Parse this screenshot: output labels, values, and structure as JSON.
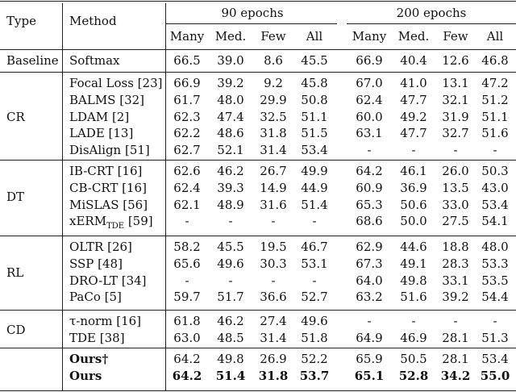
{
  "header": {
    "type": "Type",
    "method": "Method",
    "group1": "90 epochs",
    "group2": "200 epochs",
    "cols": [
      "Many",
      "Med.",
      "Few",
      "All",
      "Many",
      "Med.",
      "Few",
      "All"
    ]
  },
  "groups": [
    {
      "label": "Baseline",
      "rows": [
        {
          "method": "Softmax",
          "values": [
            "66.5",
            "39.0",
            "8.6",
            "45.5",
            "66.9",
            "40.4",
            "12.6",
            "46.8"
          ]
        }
      ]
    },
    {
      "label": "CR",
      "rows": [
        {
          "method": "Focal Loss [23]",
          "values": [
            "66.9",
            "39.2",
            "9.2",
            "45.8",
            "67.0",
            "41.0",
            "13.1",
            "47.2"
          ]
        },
        {
          "method": "BALMS [32]",
          "values": [
            "61.7",
            "48.0",
            "29.9",
            "50.8",
            "62.4",
            "47.7",
            "32.1",
            "51.2"
          ]
        },
        {
          "method": "LDAM [2]",
          "values": [
            "62.3",
            "47.4",
            "32.5",
            "51.1",
            "60.0",
            "49.2",
            "31.9",
            "51.1"
          ]
        },
        {
          "method": "LADE [13]",
          "values": [
            "62.2",
            "48.6",
            "31.8",
            "51.5",
            "63.1",
            "47.7",
            "32.7",
            "51.6"
          ]
        },
        {
          "method": "DisAlign [51]",
          "values": [
            "62.7",
            "52.1",
            "31.4",
            "53.4",
            "-",
            "-",
            "-",
            "-"
          ]
        }
      ]
    },
    {
      "label": "DT",
      "rows": [
        {
          "method": "IB-CRT [16]",
          "values": [
            "62.6",
            "46.2",
            "26.7",
            "49.9",
            "64.2",
            "46.1",
            "26.0",
            "50.3"
          ]
        },
        {
          "method": "CB-CRT [16]",
          "values": [
            "62.4",
            "39.3",
            "14.9",
            "44.9",
            "60.9",
            "36.9",
            "13.5",
            "43.0"
          ]
        },
        {
          "method": "MiSLAS [56]",
          "values": [
            "62.1",
            "48.9",
            "31.6",
            "51.4",
            "65.3",
            "50.6",
            "33.0",
            "53.4"
          ]
        },
        {
          "method": "xERM",
          "method_sub": "TDE",
          "method_ref": " [59]",
          "values": [
            "-",
            "-",
            "-",
            "-",
            "68.6",
            "50.0",
            "27.5",
            "54.1"
          ]
        }
      ]
    },
    {
      "label": "RL",
      "rows": [
        {
          "method": "OLTR [26]",
          "values": [
            "58.2",
            "45.5",
            "19.5",
            "46.7",
            "62.9",
            "44.6",
            "18.8",
            "48.0"
          ]
        },
        {
          "method": "SSP [48]",
          "values": [
            "65.6",
            "49.6",
            "30.3",
            "53.1",
            "67.3",
            "49.1",
            "28.3",
            "53.3"
          ]
        },
        {
          "method": "DRO-LT [34]",
          "values": [
            "-",
            "-",
            "-",
            "-",
            "64.0",
            "49.8",
            "33.1",
            "53.5"
          ]
        },
        {
          "method": "PaCo [5]",
          "values": [
            "59.7",
            "51.7",
            "36.6",
            "52.7",
            "63.2",
            "51.6",
            "39.2",
            "54.4"
          ]
        }
      ]
    },
    {
      "label": "CD",
      "rows": [
        {
          "method": "τ-norm [16]",
          "values": [
            "61.8",
            "46.2",
            "27.4",
            "49.6",
            "-",
            "-",
            "-",
            "-"
          ]
        },
        {
          "method": "TDE [38]",
          "values": [
            "63.0",
            "48.5",
            "31.4",
            "51.8",
            "64.9",
            "46.9",
            "28.1",
            "51.3"
          ]
        }
      ]
    },
    {
      "label": "",
      "rows": [
        {
          "method": "Ours†",
          "bold_method": true,
          "values": [
            "64.2",
            "49.8",
            "26.9",
            "52.2",
            "65.9",
            "50.5",
            "28.1",
            "53.4"
          ]
        },
        {
          "method": "Ours",
          "bold_method": true,
          "bold_values": true,
          "values": [
            "64.2",
            "51.4",
            "31.8",
            "53.7",
            "65.1",
            "52.8",
            "34.2",
            "55.0"
          ]
        }
      ]
    }
  ]
}
